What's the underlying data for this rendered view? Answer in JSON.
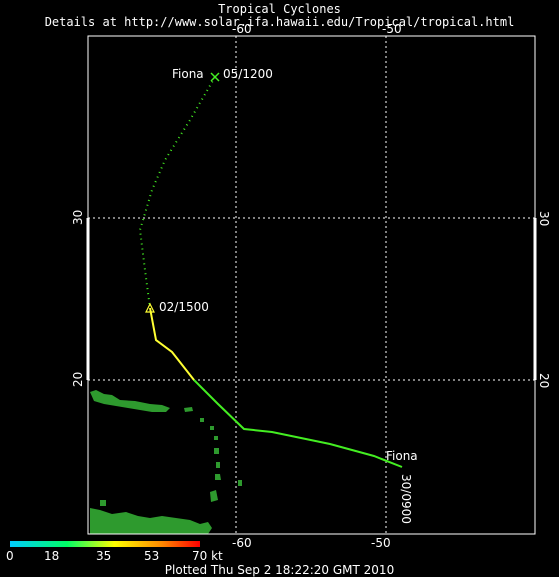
{
  "header": {
    "title": "Tropical Cyclones",
    "subtitle": "Details at http://www.solar.ifa.hawaii.edu/Tropical/tropical.html"
  },
  "map": {
    "lon_labels_top": [
      "-60",
      "-50"
    ],
    "lon_labels_bottom": [
      "-60",
      "-50"
    ],
    "lat_labels_left": [
      "30",
      "20"
    ],
    "lat_labels_right": [
      "30",
      "20"
    ],
    "grid_color": "#ffffff",
    "land_color": "#2e9a2e",
    "storm": {
      "name": "Fiona",
      "label_start": "Fiona",
      "label_start_time": "30/0900",
      "label_end": "Fiona",
      "label_end_time": "05/1200",
      "label_mid_time": "02/1500",
      "colors": {
        "yellow": "#ffff33",
        "green": "#44ee22"
      }
    }
  },
  "colorbar": {
    "labels": [
      "0",
      "18",
      "35",
      "53",
      "70 kt"
    ],
    "colors": [
      "#00ccff",
      "#00ff66",
      "#ffff00",
      "#ff8800",
      "#ff0000"
    ]
  },
  "footer": {
    "plotted": "Plotted Thu Sep 2 18:22:20 GMT 2010"
  }
}
